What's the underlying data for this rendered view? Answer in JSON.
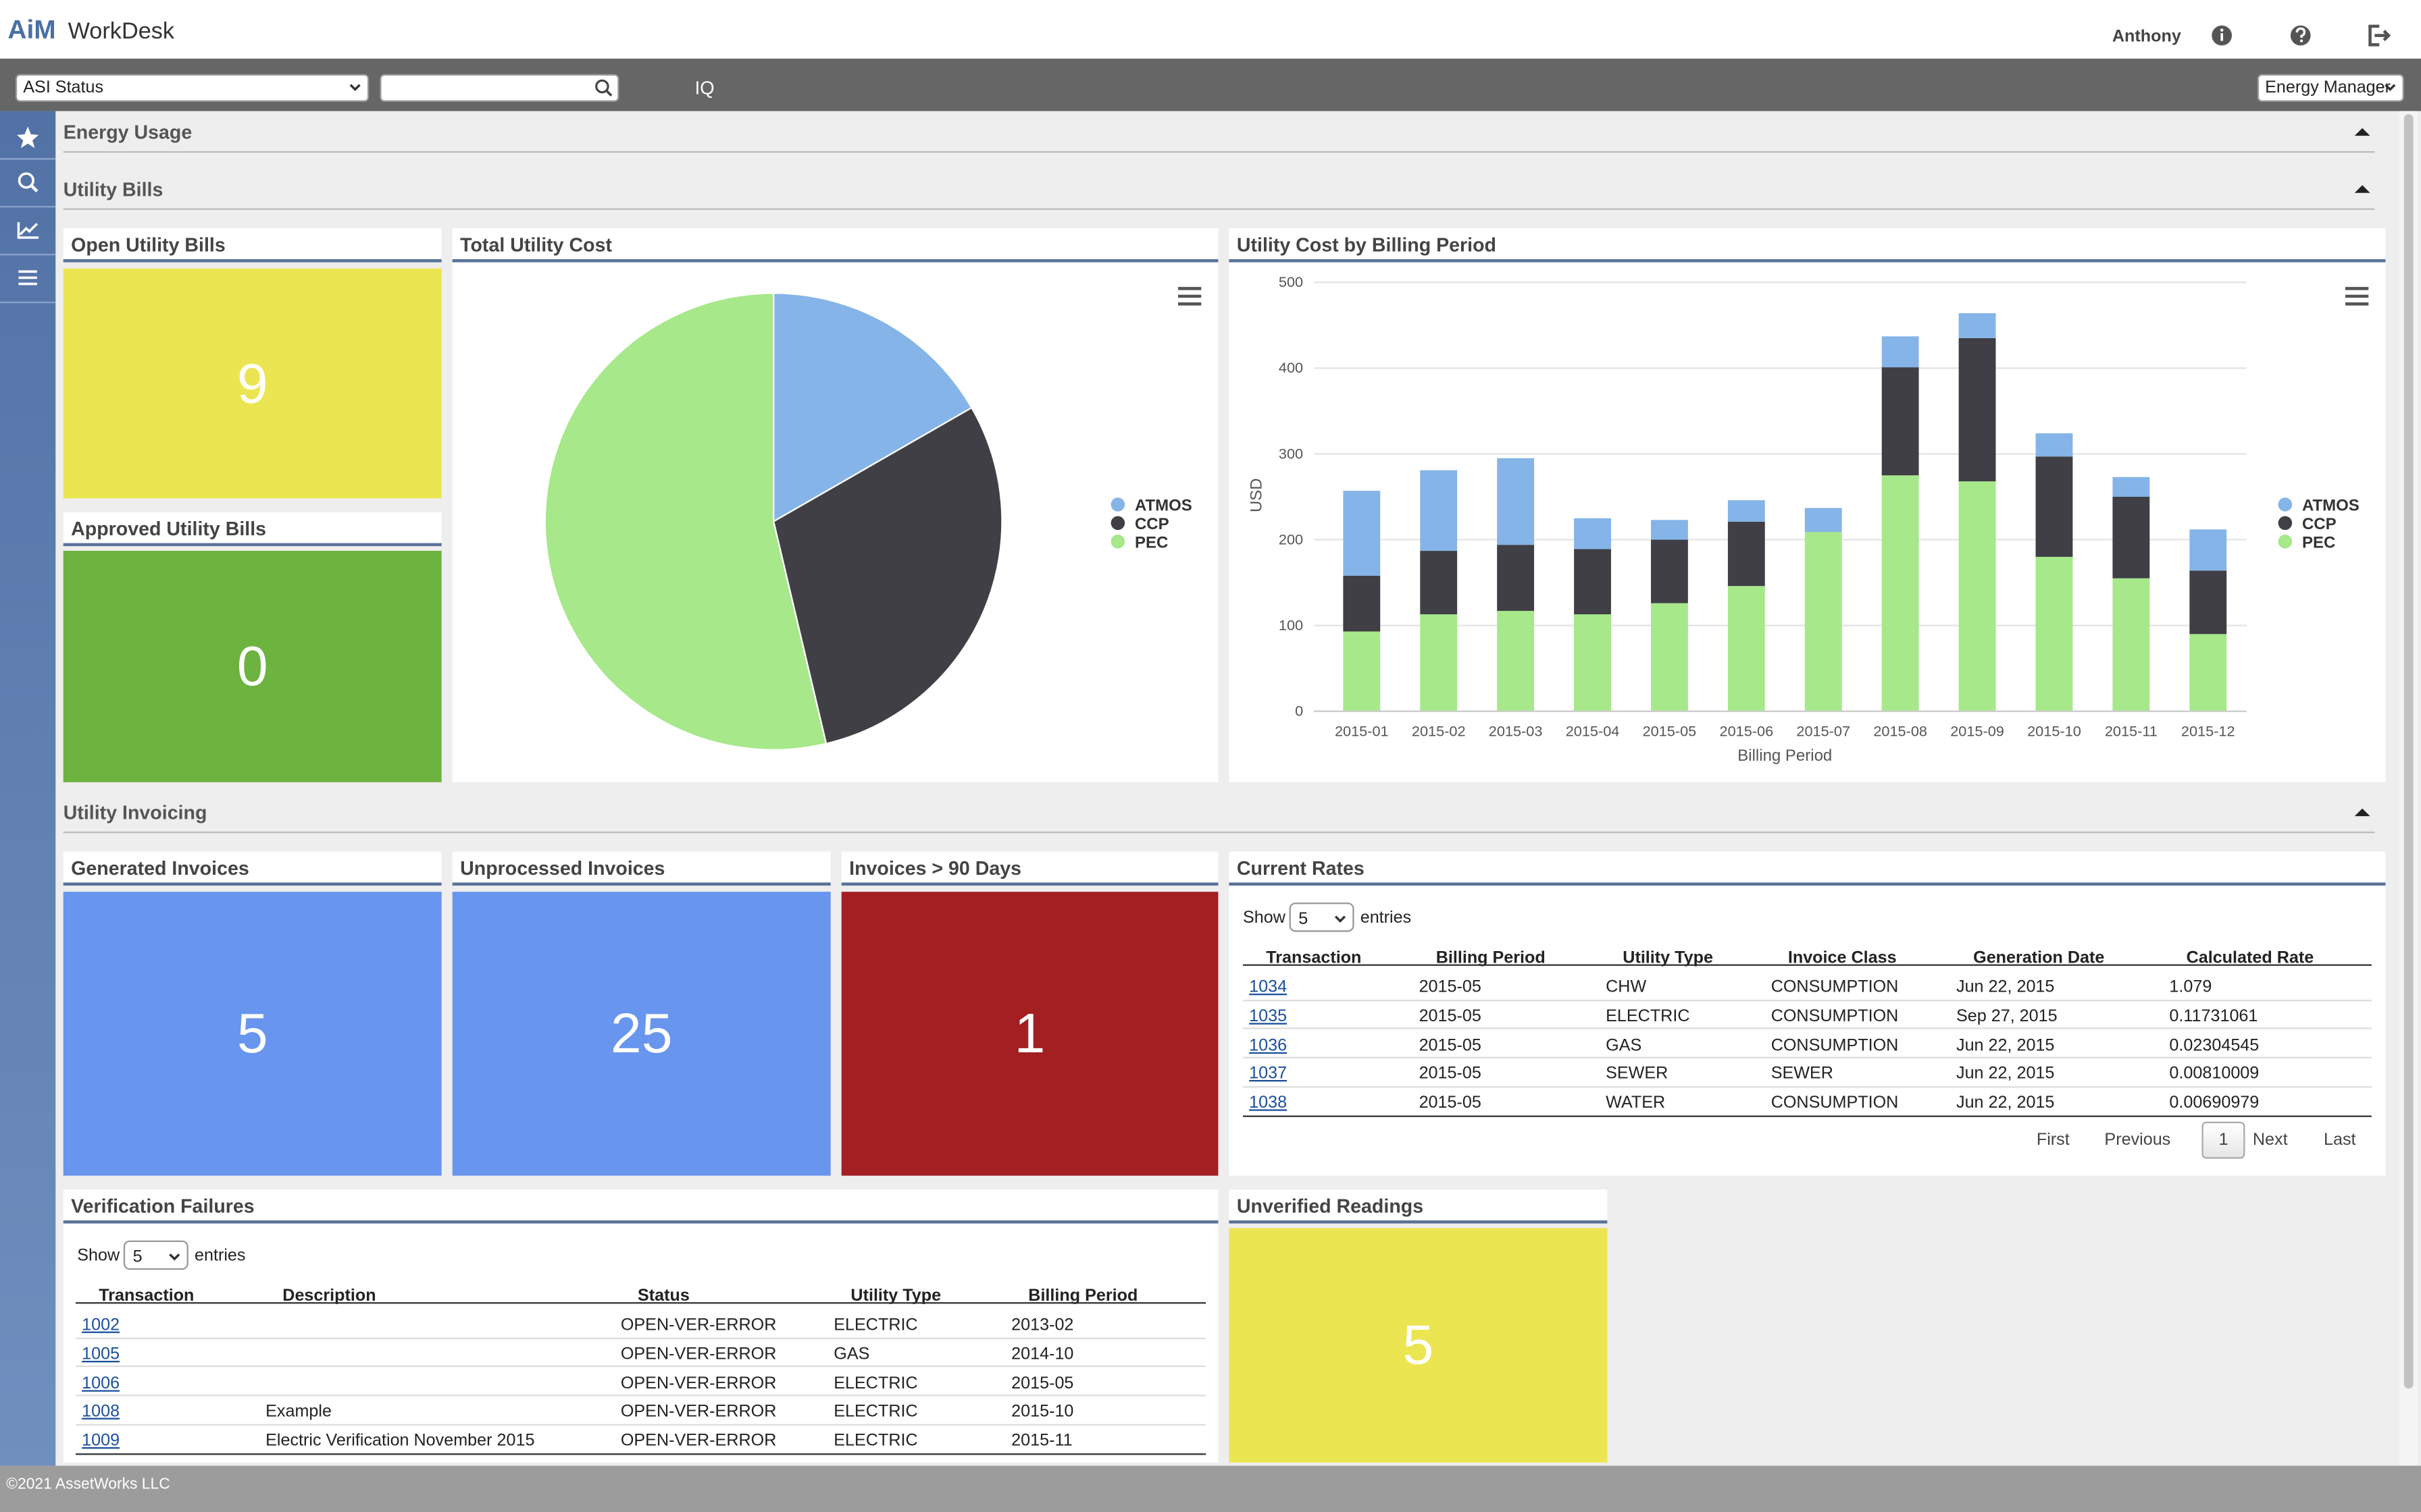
{
  "header": {
    "brand": "AiM",
    "product": "WorkDesk",
    "user": "Anthony"
  },
  "toolbar": {
    "status_select": "ASI Status",
    "iq": "IQ",
    "role_select": "Energy Manager"
  },
  "sections": [
    "Energy Usage",
    "Utility Bills",
    "Utility Invoicing"
  ],
  "tiles": [
    {
      "title": "Open Utility Bills",
      "value": "9"
    },
    {
      "title": "Approved Utility Bills",
      "value": "0"
    },
    {
      "title": "Generated Invoices",
      "value": "5"
    },
    {
      "title": "Unprocessed Invoices",
      "value": "25"
    },
    {
      "title": "Invoices > 90 Days",
      "value": "1"
    },
    {
      "title": "Unverified Readings",
      "value": "5"
    }
  ],
  "rates": {
    "title": "Current Rates",
    "show_label": "Show",
    "page_size": "5",
    "entries_label": "entries",
    "columns": [
      "Transaction",
      "Billing Period",
      "Utility Type",
      "Invoice Class",
      "Generation Date",
      "Calculated Rate"
    ],
    "rows": [
      [
        "1034",
        "2015-05",
        "CHW",
        "CONSUMPTION",
        "Jun 22, 2015",
        "1.079"
      ],
      [
        "1035",
        "2015-05",
        "ELECTRIC",
        "CONSUMPTION",
        "Sep 27, 2015",
        "0.11731061"
      ],
      [
        "1036",
        "2015-05",
        "GAS",
        "CONSUMPTION",
        "Jun 22, 2015",
        "0.02304545"
      ],
      [
        "1037",
        "2015-05",
        "SEWER",
        "SEWER",
        "Jun 22, 2015",
        "0.00810009"
      ],
      [
        "1038",
        "2015-05",
        "WATER",
        "CONSUMPTION",
        "Jun 22, 2015",
        "0.00690979"
      ]
    ],
    "pagination": [
      "First",
      "Previous",
      "1",
      "Next",
      "Last"
    ]
  },
  "failures": {
    "title": "Verification Failures",
    "show_label": "Show",
    "page_size": "5",
    "entries_label": "entries",
    "columns": [
      "Transaction",
      "Description",
      "Status",
      "Utility Type",
      "Billing Period"
    ],
    "rows": [
      [
        "1002",
        "",
        "OPEN-VER-ERROR",
        "ELECTRIC",
        "2013-02"
      ],
      [
        "1005",
        "",
        "OPEN-VER-ERROR",
        "GAS",
        "2014-10"
      ],
      [
        "1006",
        "",
        "OPEN-VER-ERROR",
        "ELECTRIC",
        "2015-05"
      ],
      [
        "1008",
        "Example",
        "OPEN-VER-ERROR",
        "ELECTRIC",
        "2015-10"
      ],
      [
        "1009",
        "Electric Verification November 2015",
        "OPEN-VER-ERROR",
        "ELECTRIC",
        "2015-11"
      ]
    ]
  },
  "footer": "©2021 AssetWorks LLC",
  "chart_data": [
    {
      "type": "pie",
      "title": "Total Utility Cost",
      "categories": [
        "ATMOS",
        "CCP",
        "PEC"
      ],
      "values": [
        16.7,
        29.6,
        53.7
      ],
      "colors": [
        "#85b4e8",
        "#3f3f45",
        "#a6e88a"
      ]
    },
    {
      "type": "bar",
      "title": "Utility Cost by Billing Period",
      "stacked": true,
      "categories": [
        "2015-01",
        "2015-02",
        "2015-03",
        "2015-04",
        "2015-05",
        "2015-06",
        "2015-07",
        "2015-08",
        "2015-09",
        "2015-10",
        "2015-11",
        "2015-12"
      ],
      "series": [
        {
          "name": "ATMOS",
          "color": "#85b4e8",
          "values": [
            99,
            94,
            101,
            36,
            23,
            25,
            28,
            36,
            29,
            27,
            23,
            48
          ]
        },
        {
          "name": "CCP",
          "color": "#3f3f45",
          "values": [
            65,
            74,
            77,
            76,
            74,
            75,
            0,
            126,
            167,
            117,
            95,
            74
          ]
        },
        {
          "name": "PEC",
          "color": "#a6e88a",
          "values": [
            93,
            113,
            117,
            113,
            126,
            146,
            209,
            275,
            268,
            180,
            155,
            90
          ]
        }
      ],
      "ylim": [
        0,
        500
      ],
      "yticks": [
        0,
        100,
        200,
        300,
        400,
        500
      ],
      "y_label": "USD",
      "x_label": "Billing Period",
      "grid": true
    }
  ]
}
